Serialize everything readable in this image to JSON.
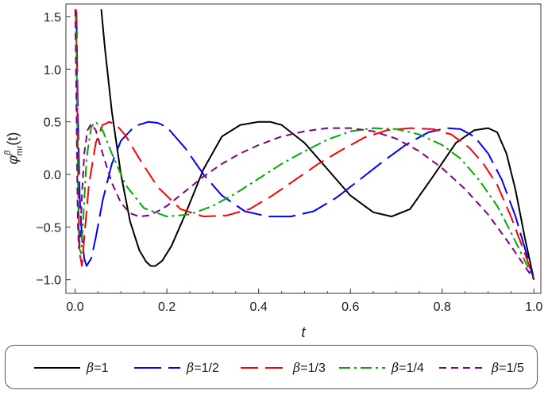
{
  "chart_data": {
    "type": "line",
    "xlabel": "t",
    "ylabel": "φ^β_mr(t)",
    "ylabel_parts": {
      "main": "φ",
      "sup": "β",
      "sub": "mr",
      "arg": "(t)"
    },
    "xlim": [
      0.0,
      1.0
    ],
    "ylim": [
      -1.0,
      1.6
    ],
    "xticks": [
      "0.0",
      "0.2",
      "0.4",
      "0.6",
      "0.8",
      "1.0"
    ],
    "yticks": [
      "-1.0",
      "-0.5",
      "0.0",
      "0.5",
      "1.0",
      "1.5"
    ],
    "grid": false,
    "legend_position": "bottom",
    "series": [
      {
        "name": "β=1",
        "label_sym": "β",
        "label_val": "=1",
        "color": "#000000",
        "dash": "",
        "x": [
          0.057,
          0.065,
          0.08,
          0.1,
          0.12,
          0.14,
          0.155,
          0.165,
          0.175,
          0.19,
          0.21,
          0.24,
          0.28,
          0.32,
          0.36,
          0.4,
          0.425,
          0.45,
          0.5,
          0.55,
          0.6,
          0.65,
          0.69,
          0.73,
          0.78,
          0.83,
          0.87,
          0.9,
          0.92,
          0.94,
          0.96,
          0.98,
          1.0
        ],
        "y": [
          1.57,
          1.2,
          0.6,
          0.0,
          -0.45,
          -0.72,
          -0.83,
          -0.87,
          -0.87,
          -0.82,
          -0.68,
          -0.38,
          0.05,
          0.36,
          0.47,
          0.5,
          0.5,
          0.47,
          0.3,
          0.05,
          -0.2,
          -0.36,
          -0.4,
          -0.33,
          -0.02,
          0.3,
          0.42,
          0.44,
          0.4,
          0.2,
          -0.15,
          -0.6,
          -1.0
        ]
      },
      {
        "name": "β=1/2",
        "label_sym": "β",
        "label_val": "=1/2",
        "color": "#0000ff",
        "dash": "34,9",
        "x": [
          0.003,
          0.006,
          0.01,
          0.015,
          0.02,
          0.025,
          0.035,
          0.045,
          0.06,
          0.08,
          0.1,
          0.13,
          0.16,
          0.18,
          0.2,
          0.24,
          0.28,
          0.32,
          0.37,
          0.42,
          0.47,
          0.52,
          0.57,
          0.62,
          0.67,
          0.72,
          0.77,
          0.81,
          0.84,
          0.87,
          0.9,
          0.93,
          0.96,
          0.98,
          1.0
        ],
        "y": [
          1.55,
          0.6,
          -0.2,
          -0.6,
          -0.8,
          -0.87,
          -0.8,
          -0.6,
          -0.25,
          0.1,
          0.32,
          0.46,
          0.5,
          0.49,
          0.45,
          0.25,
          0.0,
          -0.2,
          -0.35,
          -0.4,
          -0.4,
          -0.35,
          -0.22,
          -0.05,
          0.12,
          0.28,
          0.4,
          0.44,
          0.43,
          0.36,
          0.2,
          -0.05,
          -0.4,
          -0.7,
          -1.0
        ]
      },
      {
        "name": "β=1/3",
        "label_sym": "β",
        "label_val": "=1/3",
        "color": "#ff0000",
        "dash": "22,9",
        "x": [
          0.002,
          0.004,
          0.006,
          0.008,
          0.01,
          0.015,
          0.02,
          0.03,
          0.045,
          0.06,
          0.075,
          0.09,
          0.11,
          0.14,
          0.18,
          0.23,
          0.28,
          0.33,
          0.38,
          0.43,
          0.48,
          0.53,
          0.58,
          0.63,
          0.68,
          0.73,
          0.78,
          0.82,
          0.86,
          0.89,
          0.92,
          0.95,
          0.98,
          1.0
        ],
        "y": [
          1.57,
          1.0,
          0.2,
          -0.4,
          -0.75,
          -0.87,
          -0.6,
          -0.1,
          0.3,
          0.47,
          0.5,
          0.47,
          0.37,
          0.15,
          -0.12,
          -0.33,
          -0.4,
          -0.39,
          -0.33,
          -0.2,
          -0.05,
          0.1,
          0.23,
          0.35,
          0.42,
          0.44,
          0.43,
          0.38,
          0.25,
          0.1,
          -0.1,
          -0.4,
          -0.75,
          -1.0
        ]
      },
      {
        "name": "β=1/4",
        "label_sym": "β",
        "label_val": "=1/4",
        "color": "#00aa00",
        "dash": "14,5,3,5",
        "x": [
          0.001,
          0.003,
          0.005,
          0.007,
          0.009,
          0.013,
          0.018,
          0.025,
          0.035,
          0.045,
          0.06,
          0.08,
          0.11,
          0.15,
          0.2,
          0.25,
          0.3,
          0.35,
          0.4,
          0.45,
          0.5,
          0.55,
          0.6,
          0.65,
          0.7,
          0.75,
          0.8,
          0.84,
          0.88,
          0.92,
          0.95,
          0.98,
          1.0
        ],
        "y": [
          1.57,
          1.2,
          0.4,
          -0.3,
          -0.7,
          -0.75,
          -0.4,
          0.15,
          0.45,
          0.5,
          0.42,
          0.2,
          -0.1,
          -0.32,
          -0.4,
          -0.38,
          -0.3,
          -0.18,
          -0.04,
          0.1,
          0.22,
          0.33,
          0.41,
          0.44,
          0.43,
          0.38,
          0.28,
          0.15,
          -0.05,
          -0.3,
          -0.55,
          -0.82,
          -1.0
        ]
      },
      {
        "name": "β=1/5",
        "label_sym": "β",
        "label_val": "=1/5",
        "color": "#800080",
        "dash": "9,6",
        "x": [
          0.0005,
          0.002,
          0.004,
          0.006,
          0.008,
          0.011,
          0.015,
          0.02,
          0.027,
          0.035,
          0.045,
          0.06,
          0.08,
          0.1,
          0.12,
          0.14,
          0.16,
          0.18,
          0.2,
          0.24,
          0.28,
          0.32,
          0.36,
          0.4,
          0.45,
          0.5,
          0.55,
          0.6,
          0.65,
          0.7,
          0.75,
          0.8,
          0.85,
          0.9,
          0.95,
          1.0
        ],
        "y": [
          1.57,
          1.0,
          0.2,
          -0.45,
          -0.7,
          -0.6,
          -0.2,
          0.2,
          0.42,
          0.48,
          0.42,
          0.2,
          -0.08,
          -0.27,
          -0.37,
          -0.4,
          -0.39,
          -0.35,
          -0.3,
          -0.16,
          -0.02,
          0.1,
          0.2,
          0.28,
          0.36,
          0.41,
          0.44,
          0.44,
          0.41,
          0.34,
          0.22,
          0.06,
          -0.14,
          -0.38,
          -0.68,
          -1.0
        ]
      }
    ]
  }
}
